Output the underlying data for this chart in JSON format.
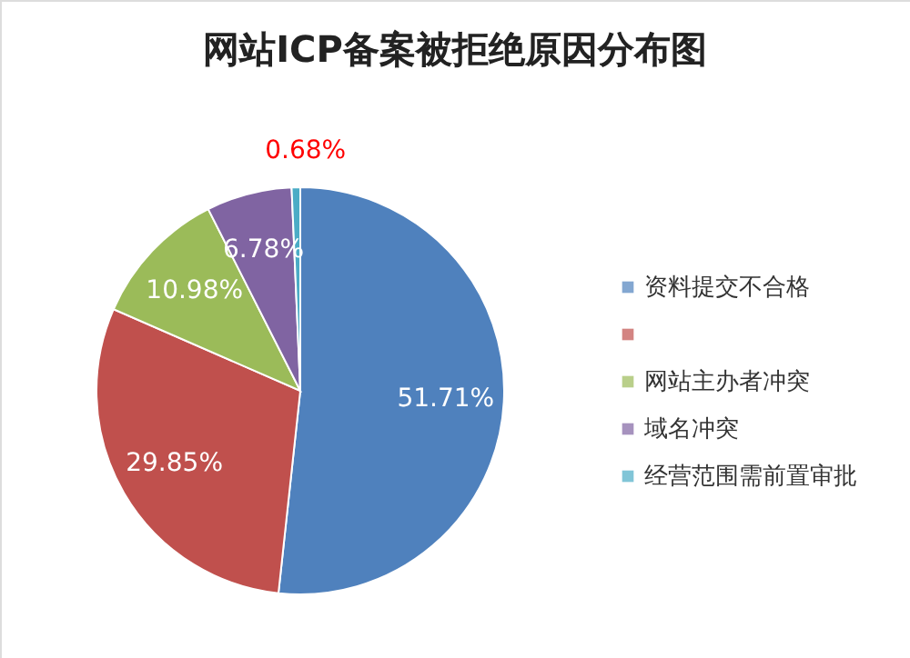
{
  "chart_data": {
    "type": "pie",
    "title": "网站ICP备案被拒绝原因分布图",
    "categories": [
      "资料提交不合格",
      null,
      "网站主办者冲突",
      "域名冲突",
      "经营范围需前置审批"
    ],
    "values": [
      51.71,
      29.85,
      10.98,
      6.78,
      0.68
    ],
    "colors": [
      "#4f81bd",
      "#c0504d",
      "#9bbb59",
      "#8064a2",
      "#4bacc6"
    ],
    "value_labels": [
      "51.71%",
      "29.85%",
      "10.98%",
      "6.78%",
      "0.68%"
    ],
    "legend": "right"
  }
}
